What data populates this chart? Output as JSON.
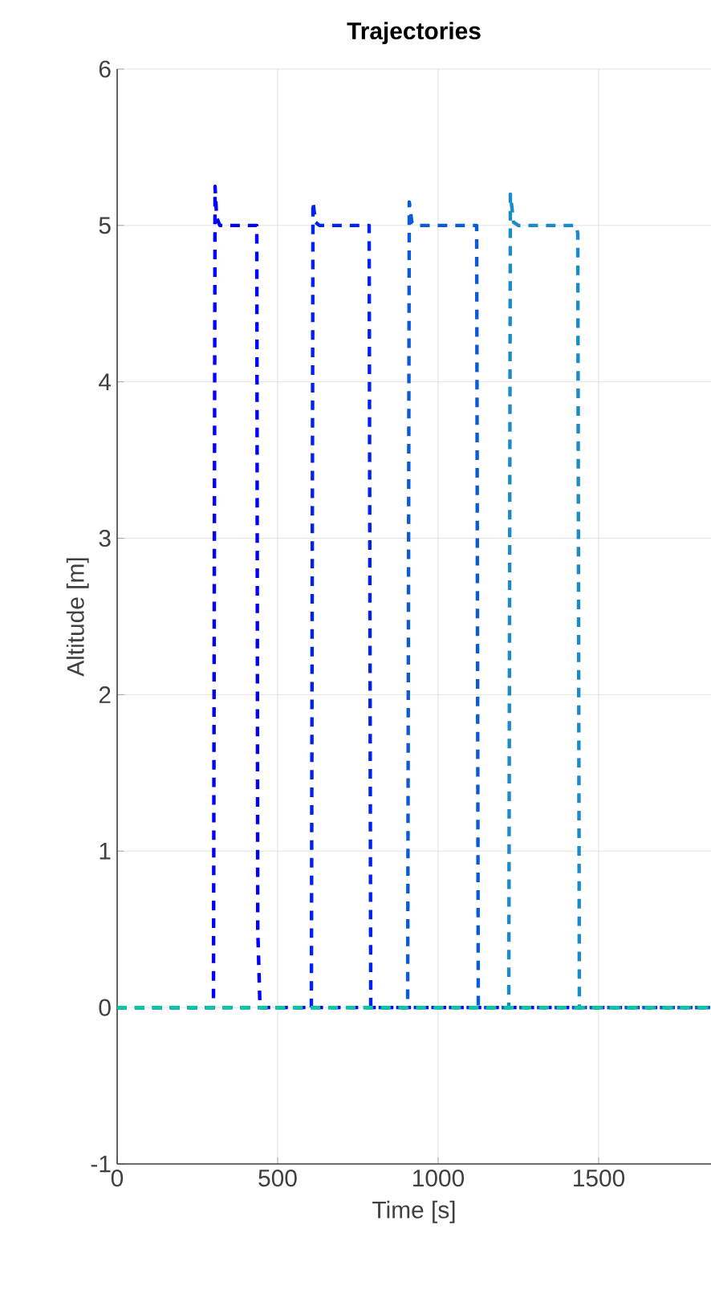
{
  "chart_data": {
    "type": "line",
    "title": "**Trajectories**",
    "xlabel": "Time [s]",
    "ylabel": "Altitude [m]",
    "xlim": [
      0,
      1850
    ],
    "ylim": [
      -1,
      6
    ],
    "xticks": [
      0,
      500,
      1000,
      1500
    ],
    "yticks": [
      -1,
      0,
      1,
      2,
      3,
      4,
      5,
      6
    ],
    "grid": true,
    "line_style": "dashed",
    "marker": "none",
    "series": [
      {
        "color": "#0000ff",
        "x": [
          0,
          300,
          305,
          310,
          320,
          435,
          438,
          445,
          1850
        ],
        "values": [
          0,
          0,
          5.25,
          5.05,
          5,
          5,
          0.5,
          0,
          0
        ]
      },
      {
        "color": "#0022ee",
        "x": [
          0,
          605,
          610,
          618,
          630,
          785,
          790,
          1850
        ],
        "values": [
          0,
          0,
          5.15,
          5.02,
          5,
          5,
          0,
          0
        ]
      },
      {
        "color": "#0a5cd6",
        "x": [
          0,
          905,
          910,
          918,
          930,
          1120,
          1125,
          1850
        ],
        "values": [
          0,
          0,
          5.15,
          5.02,
          5,
          5,
          0,
          0
        ]
      },
      {
        "color": "#1a8ac8",
        "x": [
          0,
          1220,
          1225,
          1235,
          1250,
          1430,
          1435,
          1440,
          1850
        ],
        "values": [
          0,
          0,
          5.2,
          5.02,
          5,
          5,
          4.95,
          0,
          0
        ]
      },
      {
        "color": "#00cc99",
        "x": [
          0,
          1850
        ],
        "values": [
          0,
          0
        ]
      }
    ]
  }
}
